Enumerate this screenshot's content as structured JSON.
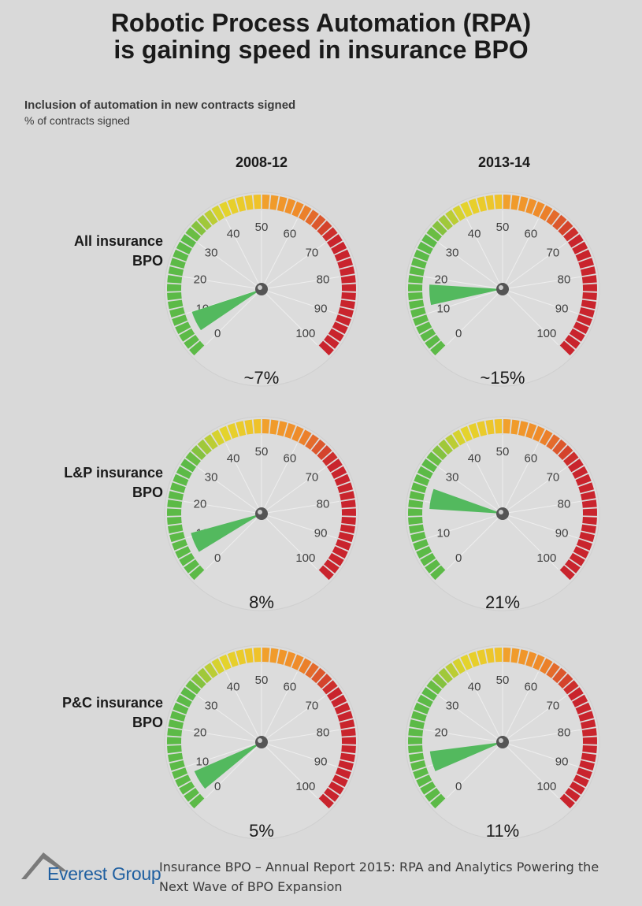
{
  "title": {
    "line1": "Robotic Process Automation (RPA)",
    "line2": "is gaining speed in insurance BPO"
  },
  "subtitle": "Inclusion of automation in new contracts signed",
  "unit_label": "% of contracts signed",
  "columns": [
    "2008-12",
    "2013-14"
  ],
  "rows": [
    {
      "line1": "All insurance",
      "line2": "BPO"
    },
    {
      "line1": "L&P insurance",
      "line2": "BPO"
    },
    {
      "line1": "P&C insurance",
      "line2": "BPO"
    }
  ],
  "colors": {
    "background": "#d9d9d9",
    "needle": "#53b95e",
    "green": "#5cba47",
    "yellow": "#e3d52c",
    "orange": "#ef8a2a",
    "red": "#c9242d"
  },
  "chart_data": {
    "type": "gauge",
    "scale": {
      "min": 0,
      "max": 100,
      "ticks": [
        0,
        10,
        20,
        30,
        40,
        50,
        60,
        70,
        80,
        90,
        100
      ]
    },
    "series": [
      {
        "name": "2008-12",
        "values": [
          7,
          8,
          5
        ],
        "labels": [
          "~7%",
          "8%",
          "5%"
        ]
      },
      {
        "name": "2013-14",
        "values": [
          15,
          21,
          11
        ],
        "labels": [
          "~15%",
          "21%",
          "11%"
        ]
      }
    ],
    "categories": [
      "All insurance BPO",
      "L&P insurance BPO",
      "P&C insurance BPO"
    ]
  },
  "footer": {
    "logo_text": "Everest Group",
    "source_line1": "Insurance BPO – Annual Report 2015: RPA and Analytics Powering the",
    "source_line2": "Next Wave of BPO Expansion"
  }
}
